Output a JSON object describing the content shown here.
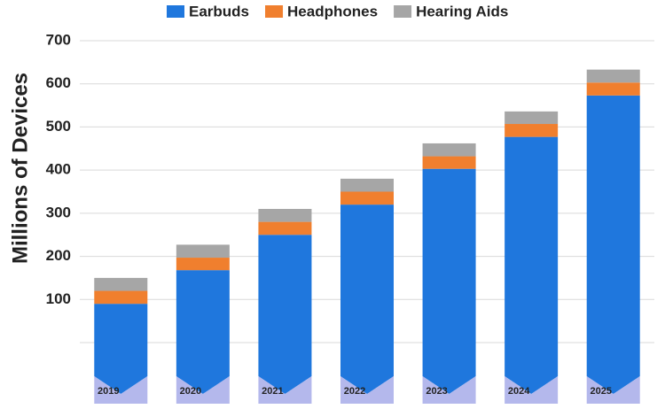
{
  "chart_data": {
    "type": "stacked_bar",
    "y_label": "Millions of Devices",
    "categories": [
      "2019",
      "2020",
      "2021",
      "2022",
      "2023",
      "2024",
      "2025"
    ],
    "series": [
      {
        "name": "Earbuds",
        "color": "#1f77dd",
        "values": [
          90,
          168,
          250,
          320,
          403,
          477,
          573
        ]
      },
      {
        "name": "Headphones",
        "color": "#f07f2e",
        "values": [
          30,
          29,
          30,
          30,
          29,
          30,
          30
        ]
      },
      {
        "name": "Hearing Aids",
        "color": "#a6a6a6",
        "values": [
          30,
          30,
          30,
          30,
          30,
          29,
          30
        ]
      }
    ],
    "ylim": [
      0,
      700
    ],
    "yticks": [
      100,
      200,
      300,
      400,
      500,
      600,
      700
    ],
    "grid": true,
    "legend": "top"
  }
}
